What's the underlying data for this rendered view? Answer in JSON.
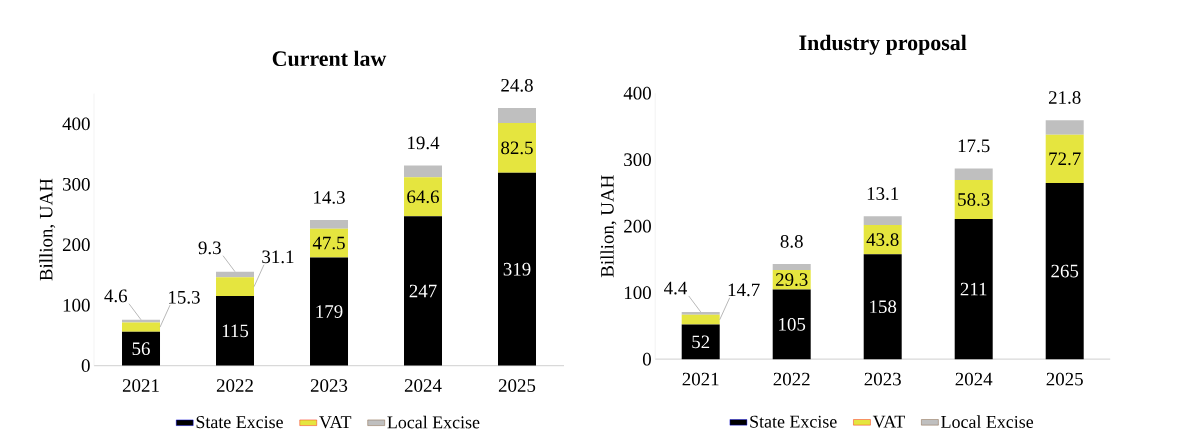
{
  "chart_data": [
    {
      "type": "bar",
      "stacked": true,
      "title": "Current law",
      "ylabel": "Billion, UAH",
      "categories": [
        "2021",
        "2022",
        "2023",
        "2024",
        "2025"
      ],
      "series": [
        {
          "name": "State Excise",
          "color": "#000000",
          "values": [
            56,
            115,
            179,
            247,
            319
          ]
        },
        {
          "name": "VAT",
          "color": "#e5e53f",
          "values": [
            15.3,
            31.1,
            47.5,
            64.6,
            82.5
          ]
        },
        {
          "name": "Local Excise",
          "color": "#bfbfbf",
          "values": [
            4.6,
            9.3,
            14.3,
            19.4,
            24.8
          ]
        }
      ],
      "ylim": [
        0,
        450
      ],
      "yticks": [
        0,
        100,
        200,
        300,
        400
      ],
      "data_labels": true,
      "legend": "bottom"
    },
    {
      "type": "bar",
      "stacked": true,
      "title": "Industry proposal",
      "ylabel": "Billion, UAH",
      "categories": [
        "2021",
        "2022",
        "2023",
        "2024",
        "2025"
      ],
      "series": [
        {
          "name": "State Excise",
          "color": "#000000",
          "values": [
            52,
            105,
            158,
            211,
            265
          ]
        },
        {
          "name": "VAT",
          "color": "#e5e53f",
          "values": [
            14.7,
            29.3,
            43.8,
            58.3,
            72.7
          ]
        },
        {
          "name": "Local Excise",
          "color": "#bfbfbf",
          "values": [
            4.4,
            8.8,
            13.1,
            17.5,
            21.8
          ]
        }
      ],
      "ylim": [
        0,
        400
      ],
      "yticks": [
        0,
        100,
        200,
        300,
        400
      ],
      "data_labels": true,
      "legend": "bottom"
    }
  ]
}
